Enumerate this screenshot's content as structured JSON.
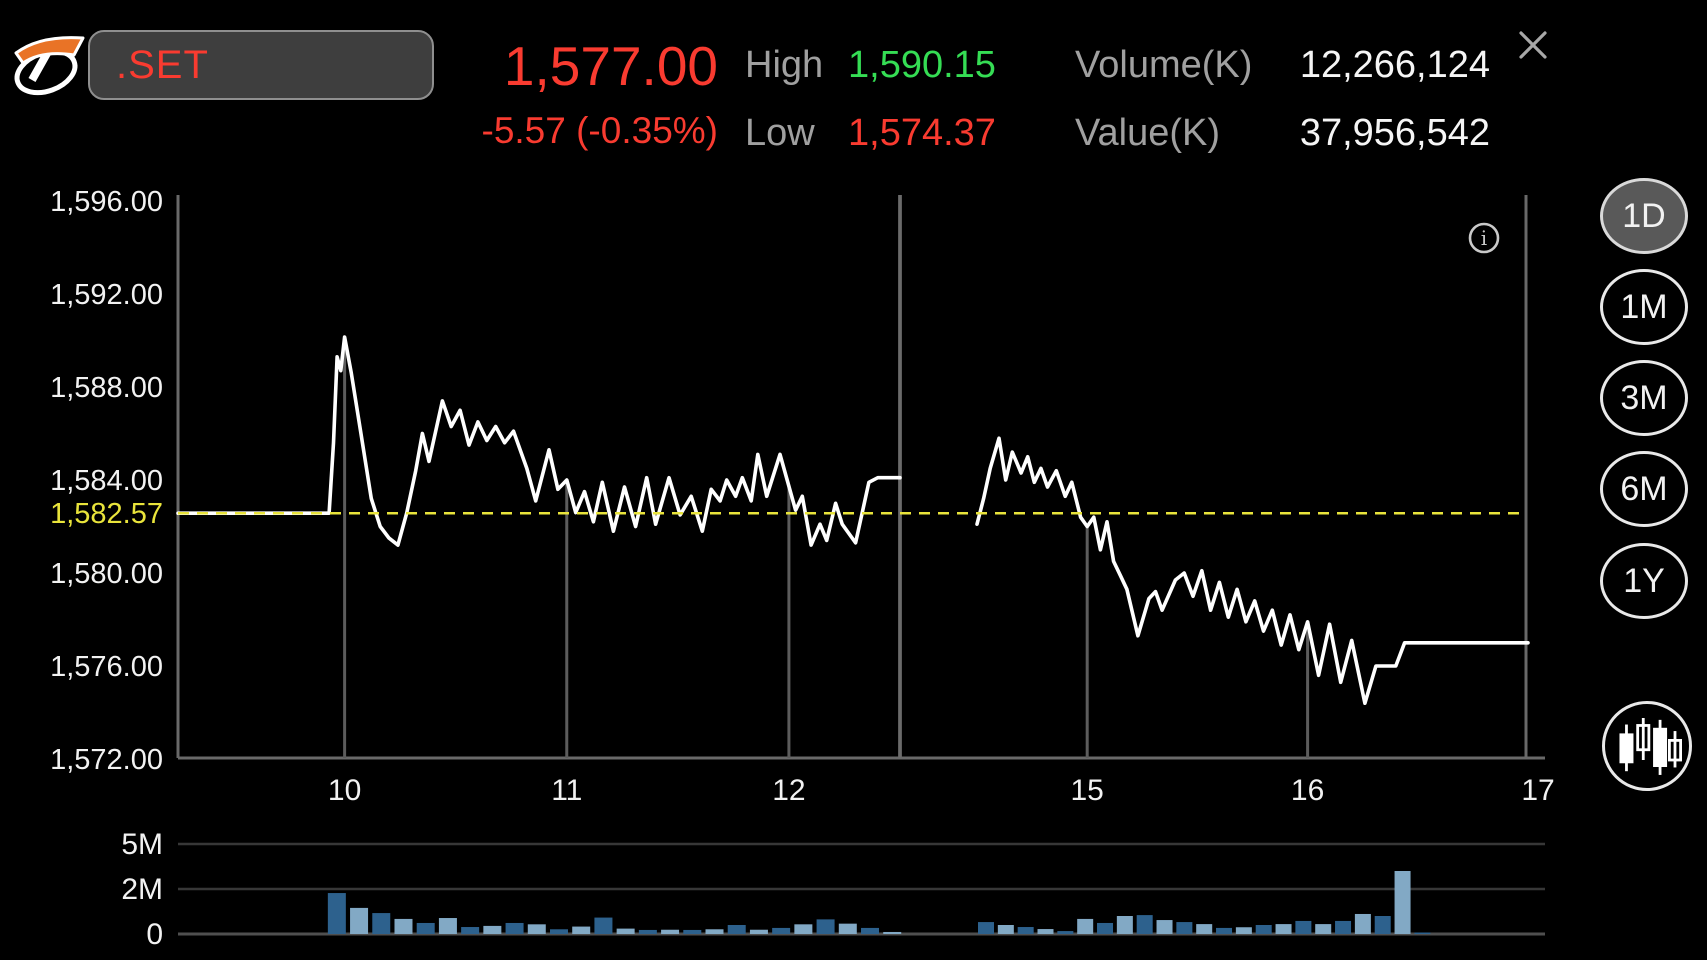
{
  "header": {
    "symbol": ".SET",
    "last_price": "1,577.00",
    "change": "-5.57 (-0.35%)",
    "high_label": "High",
    "high_value": "1,590.15",
    "low_label": "Low",
    "low_value": "1,574.37",
    "volume_label": "Volume(K)",
    "volume_value": "12,266,124",
    "value_label": "Value(K)",
    "value_value": "37,956,542"
  },
  "icons": [
    "broker-logo",
    "close-icon",
    "info-icon",
    "candlestick-chart-icon"
  ],
  "colors": {
    "background": "#000000",
    "up_green": "#35dd54",
    "down_red": "#f93b30",
    "prev_close_yellow": "#e9e43b",
    "text_white": "#f5f5f5",
    "label_gray": "#a0a0a0",
    "axis_gray": "#696969",
    "volume_grid": "#373737",
    "volume_bar_dark": "#2d618d",
    "volume_bar_light": "#82a9c5",
    "logo_orange": "#e97326",
    "symbol_box_bg": "#3e3e3e"
  },
  "range_buttons": [
    {
      "id": "1d",
      "label": "1D",
      "selected": true
    },
    {
      "id": "1m",
      "label": "1M",
      "selected": false
    },
    {
      "id": "3m",
      "label": "3M",
      "selected": false
    },
    {
      "id": "6m",
      "label": "6M",
      "selected": false
    },
    {
      "id": "1y",
      "label": "1Y",
      "selected": false
    }
  ],
  "chart_data": {
    "type": "line",
    "title": ".SET intraday (1D)",
    "prev_close": 1582.57,
    "prev_close_label": "1,582.57",
    "ylim": [
      1572,
      1596
    ],
    "y_ticks": [
      {
        "label": "1,596.00",
        "value": 1596
      },
      {
        "label": "1,592.00",
        "value": 1592
      },
      {
        "label": "1,588.00",
        "value": 1588
      },
      {
        "label": "1,584.00",
        "value": 1584
      },
      {
        "label": "1,580.00",
        "value": 1580
      },
      {
        "label": "1,576.00",
        "value": 1576
      },
      {
        "label": "1,572.00",
        "value": 1572
      }
    ],
    "x_ticks": [
      {
        "label": "10",
        "t": 10
      },
      {
        "label": "11",
        "t": 11
      },
      {
        "label": "12",
        "t": 12
      },
      {
        "label": "15",
        "t": 15
      },
      {
        "label": "16",
        "t": 16
      },
      {
        "label": "17",
        "t": 17
      }
    ],
    "hour_marker_times": [
      10,
      11,
      12,
      15,
      16
    ],
    "sessions": {
      "morning": [
        9.25,
        12.5
      ],
      "afternoon": [
        14.5,
        17.0
      ],
      "break_lines_t": [
        12.5,
        14.5
      ]
    },
    "price_series": {
      "morning": [
        [
          9.25,
          1582.57
        ],
        [
          9.93,
          1582.57
        ],
        [
          9.95,
          1585.6
        ],
        [
          9.966,
          1589.3
        ],
        [
          9.983,
          1588.7
        ],
        [
          10.0,
          1590.15
        ],
        [
          10.03,
          1588.6
        ],
        [
          10.07,
          1586.2
        ],
        [
          10.12,
          1583.2
        ],
        [
          10.16,
          1582.0
        ],
        [
          10.2,
          1581.5
        ],
        [
          10.24,
          1581.2
        ],
        [
          10.28,
          1582.6
        ],
        [
          10.32,
          1584.4
        ],
        [
          10.35,
          1586.0
        ],
        [
          10.38,
          1584.8
        ],
        [
          10.44,
          1587.4
        ],
        [
          10.48,
          1586.3
        ],
        [
          10.52,
          1587.0
        ],
        [
          10.56,
          1585.5
        ],
        [
          10.6,
          1586.5
        ],
        [
          10.64,
          1585.7
        ],
        [
          10.68,
          1586.3
        ],
        [
          10.72,
          1585.6
        ],
        [
          10.76,
          1586.1
        ],
        [
          10.82,
          1584.5
        ],
        [
          10.86,
          1583.1
        ],
        [
          10.92,
          1585.3
        ],
        [
          10.96,
          1583.6
        ],
        [
          11.0,
          1584.0
        ],
        [
          11.04,
          1582.6
        ],
        [
          11.08,
          1583.5
        ],
        [
          11.12,
          1582.2
        ],
        [
          11.16,
          1583.9
        ],
        [
          11.21,
          1581.8
        ],
        [
          11.26,
          1583.7
        ],
        [
          11.31,
          1582.0
        ],
        [
          11.36,
          1584.1
        ],
        [
          11.4,
          1582.1
        ],
        [
          11.46,
          1584.1
        ],
        [
          11.51,
          1582.5
        ],
        [
          11.56,
          1583.3
        ],
        [
          11.61,
          1581.8
        ],
        [
          11.65,
          1583.6
        ],
        [
          11.69,
          1583.1
        ],
        [
          11.72,
          1584.0
        ],
        [
          11.76,
          1583.3
        ],
        [
          11.79,
          1584.1
        ],
        [
          11.83,
          1583.1
        ],
        [
          11.86,
          1585.1
        ],
        [
          11.9,
          1583.3
        ],
        [
          11.96,
          1585.1
        ],
        [
          12.03,
          1582.7
        ],
        [
          12.06,
          1583.3
        ],
        [
          12.1,
          1581.2
        ],
        [
          12.14,
          1582.1
        ],
        [
          12.17,
          1581.4
        ],
        [
          12.21,
          1583.0
        ],
        [
          12.24,
          1582.1
        ],
        [
          12.3,
          1581.3
        ],
        [
          12.36,
          1583.9
        ],
        [
          12.4,
          1584.1
        ],
        [
          12.5,
          1584.1
        ]
      ],
      "afternoon": [
        [
          14.5,
          1582.1
        ],
        [
          14.53,
          1583.2
        ],
        [
          14.56,
          1584.5
        ],
        [
          14.6,
          1585.8
        ],
        [
          14.63,
          1584.0
        ],
        [
          14.66,
          1585.2
        ],
        [
          14.7,
          1584.3
        ],
        [
          14.73,
          1585.0
        ],
        [
          14.76,
          1583.9
        ],
        [
          14.79,
          1584.5
        ],
        [
          14.82,
          1583.7
        ],
        [
          14.86,
          1584.4
        ],
        [
          14.9,
          1583.3
        ],
        [
          14.93,
          1583.9
        ],
        [
          14.97,
          1582.4
        ],
        [
          15.0,
          1582.0
        ],
        [
          15.03,
          1582.4
        ],
        [
          15.06,
          1581.0
        ],
        [
          15.09,
          1582.2
        ],
        [
          15.12,
          1580.5
        ],
        [
          15.15,
          1579.9
        ],
        [
          15.18,
          1579.3
        ],
        [
          15.23,
          1577.3
        ],
        [
          15.28,
          1578.9
        ],
        [
          15.31,
          1579.2
        ],
        [
          15.34,
          1578.4
        ],
        [
          15.4,
          1579.7
        ],
        [
          15.44,
          1580.0
        ],
        [
          15.48,
          1579.0
        ],
        [
          15.52,
          1580.1
        ],
        [
          15.56,
          1578.4
        ],
        [
          15.6,
          1579.6
        ],
        [
          15.64,
          1578.1
        ],
        [
          15.68,
          1579.3
        ],
        [
          15.72,
          1577.9
        ],
        [
          15.76,
          1578.8
        ],
        [
          15.8,
          1577.5
        ],
        [
          15.84,
          1578.4
        ],
        [
          15.88,
          1576.9
        ],
        [
          15.92,
          1578.2
        ],
        [
          15.96,
          1576.7
        ],
        [
          16.0,
          1577.9
        ],
        [
          16.05,
          1575.6
        ],
        [
          16.1,
          1577.8
        ],
        [
          16.15,
          1575.3
        ],
        [
          16.2,
          1577.1
        ],
        [
          16.26,
          1574.4
        ],
        [
          16.31,
          1576.0
        ],
        [
          16.4,
          1576.0
        ],
        [
          16.44,
          1577.0
        ],
        [
          17.0,
          1577.0
        ]
      ]
    },
    "volume": {
      "unit": "M",
      "y_ticks": [
        {
          "label": "5M",
          "value": 5
        },
        {
          "label": "2M",
          "value": 2
        },
        {
          "label": "0",
          "value": 0
        }
      ],
      "morning": {
        "start_t": 9.92,
        "step_t": 0.1,
        "bars": [
          [
            1.82,
            "d"
          ],
          [
            1.16,
            "l"
          ],
          [
            0.93,
            "d"
          ],
          [
            0.67,
            "l"
          ],
          [
            0.49,
            "d"
          ],
          [
            0.71,
            "l"
          ],
          [
            0.31,
            "d"
          ],
          [
            0.36,
            "l"
          ],
          [
            0.49,
            "d"
          ],
          [
            0.43,
            "l"
          ],
          [
            0.21,
            "d"
          ],
          [
            0.33,
            "l"
          ],
          [
            0.73,
            "d"
          ],
          [
            0.24,
            "l"
          ],
          [
            0.18,
            "d"
          ],
          [
            0.19,
            "l"
          ],
          [
            0.18,
            "d"
          ],
          [
            0.21,
            "l"
          ],
          [
            0.4,
            "d"
          ],
          [
            0.19,
            "l"
          ],
          [
            0.27,
            "d"
          ],
          [
            0.43,
            "l"
          ],
          [
            0.65,
            "d"
          ],
          [
            0.46,
            "l"
          ],
          [
            0.27,
            "d"
          ],
          [
            0.09,
            "l"
          ]
        ]
      },
      "afternoon": {
        "start_t": 14.5,
        "step_t": 0.09,
        "bars": [
          [
            0.53,
            "d"
          ],
          [
            0.4,
            "l"
          ],
          [
            0.31,
            "d"
          ],
          [
            0.22,
            "l"
          ],
          [
            0.13,
            "d"
          ],
          [
            0.67,
            "l"
          ],
          [
            0.49,
            "d"
          ],
          [
            0.8,
            "l"
          ],
          [
            0.84,
            "d"
          ],
          [
            0.62,
            "l"
          ],
          [
            0.53,
            "d"
          ],
          [
            0.44,
            "l"
          ],
          [
            0.27,
            "d"
          ],
          [
            0.3,
            "l"
          ],
          [
            0.4,
            "d"
          ],
          [
            0.44,
            "l"
          ],
          [
            0.58,
            "d"
          ],
          [
            0.44,
            "l"
          ],
          [
            0.58,
            "d"
          ],
          [
            0.89,
            "l"
          ],
          [
            0.8,
            "d"
          ],
          [
            3.2,
            "l"
          ],
          [
            0.05,
            "d"
          ]
        ]
      }
    }
  }
}
